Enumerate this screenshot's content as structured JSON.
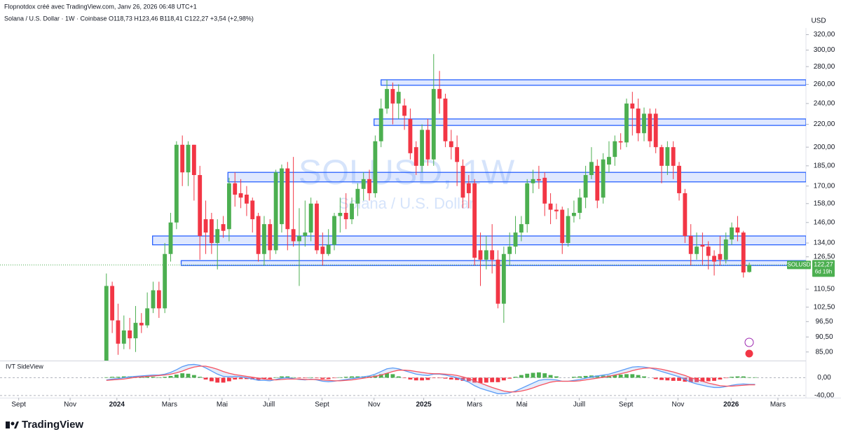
{
  "header": {
    "credit": "Flopnotdox créé avec TradingView.com, Janv 26, 2026 06:48 UTC+1",
    "legend": "Solana / U.S. Dollar · 1W · Coinbase   O118,73  H123,46  B118,41  C122,27  +3,54 (+2,98%)"
  },
  "footer": {
    "brand": "TradingView"
  },
  "chart_data": [
    {
      "type": "candlestick",
      "title": "SOLUSD, 1W",
      "subtitle": "Solana / U.S. Dollar",
      "axis_unit": "USD",
      "log_scale": true,
      "up_color": "#4caf50",
      "down_color": "#f23645",
      "zone_color": "#2962ff",
      "open": [
        75,
        112,
        97,
        88,
        93,
        90,
        96,
        95,
        102,
        110,
        102,
        128,
        146,
        202,
        180,
        202,
        178,
        148,
        148,
        134,
        145,
        142,
        172,
        165,
        164,
        160,
        150,
        128,
        145,
        130,
        145,
        183,
        142,
        135,
        138,
        140,
        158,
        132,
        128,
        133,
        150,
        152,
        148,
        158,
        168,
        175,
        165,
        205,
        235,
        255,
        240,
        238,
        225,
        200,
        185,
        215,
        190,
        255,
        245,
        205,
        200,
        185,
        172,
        172,
        130,
        125,
        130,
        125,
        104,
        128,
        132,
        140,
        145,
        172,
        175,
        176,
        158,
        154,
        154,
        134,
        150,
        152,
        162,
        178,
        185,
        162,
        186,
        192,
        205,
        204,
        240,
        235,
        212,
        230,
        230,
        200,
        185,
        200,
        185,
        165,
        138,
        128,
        133,
        132,
        127,
        128,
        125,
        136,
        143,
        140,
        118.73
      ],
      "high": [
        118,
        114,
        104,
        99,
        98,
        103,
        100,
        109,
        114,
        114,
        134,
        152,
        205,
        210,
        205,
        202,
        185,
        160,
        152,
        148,
        150,
        176,
        180,
        175,
        170,
        162,
        152,
        150,
        148,
        182,
        186,
        188,
        192,
        155,
        160,
        162,
        160,
        140,
        142,
        152,
        162,
        165,
        162,
        172,
        180,
        182,
        210,
        245,
        265,
        262,
        260,
        245,
        235,
        205,
        220,
        225,
        295,
        275,
        250,
        215,
        210,
        190,
        178,
        175,
        140,
        138,
        145,
        130,
        132,
        140,
        150,
        150,
        175,
        182,
        185,
        180,
        165,
        158,
        156,
        155,
        160,
        168,
        185,
        200,
        190,
        195,
        205,
        210,
        212,
        245,
        252,
        245,
        236,
        235,
        235,
        202,
        205,
        205,
        188,
        168,
        145,
        140,
        140,
        135,
        130,
        138,
        140,
        146,
        150,
        141,
        123.46
      ],
      "low": [
        72,
        92,
        84,
        86,
        86,
        85,
        92,
        94,
        100,
        98,
        100,
        124,
        142,
        170,
        170,
        160,
        125,
        128,
        128,
        120,
        137,
        135,
        156,
        155,
        150,
        140,
        124,
        122,
        125,
        128,
        140,
        130,
        132,
        112,
        132,
        135,
        128,
        122,
        127,
        130,
        140,
        142,
        145,
        150,
        160,
        160,
        162,
        200,
        230,
        220,
        225,
        215,
        190,
        178,
        180,
        185,
        185,
        230,
        200,
        190,
        170,
        155,
        155,
        122,
        112,
        120,
        118,
        102,
        96,
        122,
        128,
        135,
        140,
        165,
        168,
        150,
        145,
        148,
        128,
        132,
        146,
        148,
        155,
        175,
        155,
        158,
        180,
        185,
        198,
        200,
        210,
        205,
        205,
        200,
        195,
        172,
        178,
        175,
        160,
        134,
        122,
        125,
        122,
        120,
        117,
        122,
        123,
        133,
        135,
        116,
        118.41
      ],
      "close": [
        112,
        97,
        88,
        93,
        90,
        96,
        95,
        102,
        110,
        102,
        128,
        146,
        202,
        180,
        202,
        178,
        138,
        140,
        134,
        142,
        141,
        172,
        164,
        162,
        158,
        148,
        128,
        145,
        130,
        180,
        183,
        142,
        135,
        138,
        140,
        158,
        130,
        128,
        133,
        150,
        152,
        148,
        158,
        168,
        175,
        165,
        205,
        235,
        255,
        240,
        252,
        228,
        195,
        185,
        215,
        190,
        255,
        245,
        205,
        200,
        188,
        162,
        165,
        126,
        125,
        130,
        125,
        104,
        128,
        132,
        140,
        145,
        172,
        175,
        174,
        158,
        154,
        153,
        134,
        150,
        152,
        162,
        178,
        188,
        160,
        190,
        192,
        205,
        204,
        240,
        235,
        212,
        230,
        205,
        200,
        185,
        200,
        185,
        165,
        138,
        128,
        132,
        132,
        127,
        124,
        125,
        136,
        143,
        140,
        118.5,
        122.27
      ],
      "xlim": [
        -18.2,
        119.7
      ],
      "ylim": [
        82,
        329
      ],
      "xticks": [
        {
          "value": -15,
          "label": "Sept"
        },
        {
          "value": -6.2,
          "label": "Nov"
        },
        1.8,
        {
          "value": 10.8,
          "label": "Mars"
        },
        {
          "value": 19.8,
          "label": "Mai"
        },
        {
          "value": 27.8,
          "label": "Juill"
        },
        {
          "value": 36.9,
          "label": "Sept"
        },
        {
          "value": 45.8,
          "label": "Nov"
        },
        54.3,
        {
          "value": 63,
          "label": "Mars"
        },
        {
          "value": 71.1,
          "label": "Mai"
        },
        {
          "value": 80.9,
          "label": "Juill"
        },
        {
          "value": 88.9,
          "label": "Sept"
        },
        {
          "value": 97.8,
          "label": "Nov"
        },
        106.9,
        {
          "value": 114.9,
          "label": "Mars"
        }
      ],
      "xtick_labels": [
        "Sept",
        "Nov",
        "2024",
        "Mars",
        "Mai",
        "Juill",
        "Sept",
        "Nov",
        "2025",
        "Mars",
        "Mai",
        "Juill",
        "Sept",
        "Nov",
        "2026",
        "Mars"
      ],
      "yticks": [
        {
          "value": 320,
          "label": "320,00"
        },
        {
          "value": 300,
          "label": "300,00"
        },
        {
          "value": 280,
          "label": "280,00"
        },
        {
          "value": 260,
          "label": "260,00"
        },
        {
          "value": 240,
          "label": "240,00"
        },
        {
          "value": 220,
          "label": "220,00"
        },
        {
          "value": 200,
          "label": "200,00"
        },
        {
          "value": 185,
          "label": "185,00"
        },
        {
          "value": 170,
          "label": "170,00"
        },
        {
          "value": 158,
          "label": "158,00"
        },
        {
          "value": 146,
          "label": "146,00"
        },
        {
          "value": 134,
          "label": "134,00"
        },
        {
          "value": 126.5,
          "label": "126,50"
        },
        {
          "value": 110.5,
          "label": "110,50"
        },
        {
          "value": 102.5,
          "label": "102,50"
        },
        {
          "value": 96.5,
          "label": "96,50"
        },
        {
          "value": 90.5,
          "label": "90,50"
        },
        {
          "value": 85,
          "label": "85,00"
        }
      ],
      "zones": [
        {
          "low": 259,
          "high": 265,
          "start": 47
        },
        {
          "low": 219,
          "high": 225,
          "start": 45.8
        },
        {
          "low": 173,
          "high": 180,
          "start": 20.8
        },
        {
          "low": 133,
          "high": 138,
          "start": 7.9
        },
        {
          "low": 122,
          "high": 124.5,
          "start": 12.8
        }
      ],
      "price_tag": {
        "symbol": "SOLUSD",
        "value": 122.27,
        "label": "122,27",
        "countdown": "6d 19h"
      }
    },
    {
      "type": "oscillator",
      "title": "IVT SideView",
      "histogram": [
        1,
        2,
        2,
        3,
        3,
        2,
        2,
        2,
        2,
        1,
        2,
        4,
        7,
        10,
        9,
        6,
        2,
        -4,
        -8,
        -11,
        -11,
        -8,
        -4,
        -3,
        -3,
        -4,
        -5,
        -3,
        -3,
        1,
        3,
        3,
        1,
        -1,
        -1,
        1,
        -1,
        -3,
        -3,
        -1,
        1,
        2,
        3,
        3,
        3,
        3,
        5,
        8,
        10,
        8,
        3,
        -1,
        -4,
        -6,
        -6,
        -5,
        -1,
        -1,
        -2,
        -4,
        -5,
        -7,
        -8,
        -11,
        -12,
        -11,
        -10,
        -10,
        -6,
        -2,
        2,
        6,
        9,
        11,
        12,
        10,
        6,
        3,
        0,
        0,
        2,
        3,
        4,
        5,
        5,
        5,
        5,
        6,
        7,
        8,
        8,
        6,
        3,
        0,
        -3,
        -5,
        -6,
        -7,
        -7,
        -9,
        -10,
        -10,
        -9,
        -8,
        -7,
        -4,
        -1,
        2,
        3,
        3,
        1,
        1
      ],
      "up_color": "#4caf50",
      "down_color": "#f23645",
      "series": [
        {
          "color": "#5b9cf6",
          "values": [
            -5,
            -3,
            -2,
            0,
            2,
            3,
            4,
            5,
            6,
            6,
            8,
            12,
            18,
            25,
            29,
            30,
            28,
            22,
            15,
            8,
            3,
            2,
            3,
            2,
            0,
            -3,
            -6,
            -6,
            -7,
            -4,
            -1,
            0,
            -2,
            -4,
            -5,
            -3,
            -5,
            -8,
            -9,
            -8,
            -6,
            -4,
            -2,
            0,
            2,
            4,
            8,
            14,
            20,
            22,
            20,
            16,
            12,
            8,
            6,
            5,
            8,
            8,
            6,
            3,
            0,
            -5,
            -10,
            -18,
            -24,
            -28,
            -32,
            -36,
            -36,
            -34,
            -30,
            -24,
            -18,
            -12,
            -6,
            -4,
            -4,
            -5,
            -8,
            -8,
            -6,
            -4,
            -1,
            2,
            4,
            6,
            8,
            12,
            16,
            20,
            24,
            25,
            24,
            22,
            18,
            14,
            10,
            6,
            2,
            -4,
            -10,
            -14,
            -17,
            -20,
            -22,
            -22,
            -20,
            -17,
            -15,
            -14,
            -15,
            -15
          ]
        },
        {
          "color": "#f7525f",
          "values": [
            -6,
            -5,
            -4,
            -3,
            -1,
            1,
            2,
            3,
            4,
            5,
            6,
            8,
            11,
            15,
            20,
            24,
            26,
            26,
            23,
            19,
            14,
            10,
            7,
            5,
            3,
            1,
            -1,
            -3,
            -4,
            -5,
            -4,
            -3,
            -3,
            -3,
            -4,
            -4,
            -4,
            -5,
            -6,
            -7,
            -7,
            -6,
            -5,
            -3,
            -1,
            1,
            3,
            6,
            10,
            14,
            17,
            17,
            16,
            14,
            12,
            10,
            9,
            9,
            8,
            7,
            5,
            2,
            -2,
            -7,
            -12,
            -17,
            -22,
            -26,
            -30,
            -32,
            -32,
            -30,
            -27,
            -23,
            -18,
            -14,
            -10,
            -8,
            -8,
            -8,
            -8,
            -7,
            -5,
            -3,
            -1,
            1,
            3,
            6,
            9,
            12,
            16,
            19,
            21,
            22,
            21,
            19,
            16,
            13,
            9,
            5,
            0,
            -4,
            -8,
            -12,
            -15,
            -18,
            -19,
            -19,
            -18,
            -17,
            -16,
            -16
          ]
        }
      ],
      "ylim": [
        -45,
        37
      ],
      "yticks": [
        {
          "value": 0,
          "label": "0,00"
        },
        {
          "value": -40,
          "label": "-40,00"
        }
      ]
    }
  ]
}
